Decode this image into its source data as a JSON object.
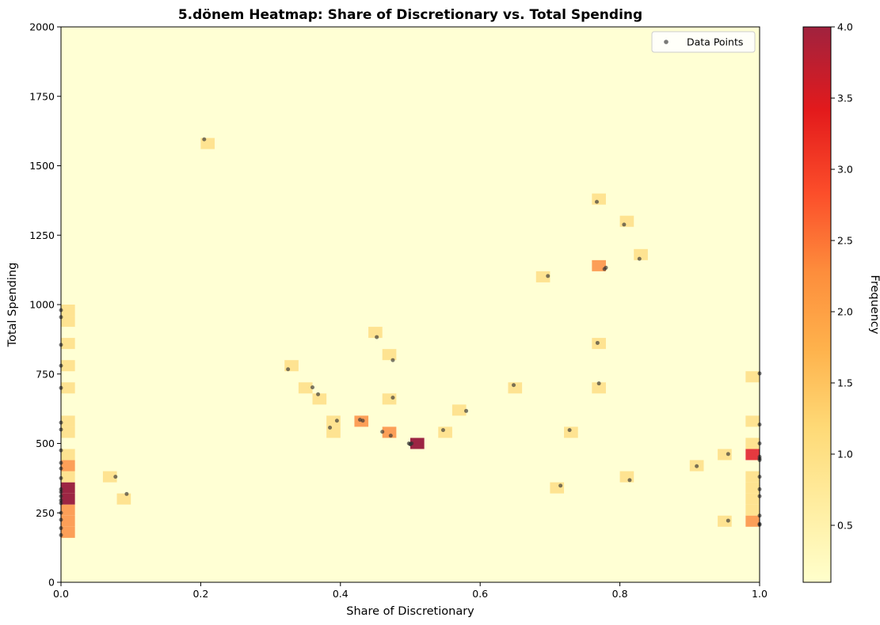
{
  "chart_data": {
    "type": "heatmap",
    "title": "5.dönem Heatmap: Share of Discretionary vs. Total Spending",
    "xlabel": "Share of Discretionary",
    "ylabel": "Total Spending",
    "xlim": [
      0,
      1
    ],
    "ylim": [
      0,
      2000
    ],
    "x_ticks": [
      "0.0",
      "0.2",
      "0.4",
      "0.6",
      "0.8",
      "1.0"
    ],
    "y_ticks": [
      "0",
      "250",
      "500",
      "750",
      "1000",
      "1250",
      "1500",
      "1750",
      "2000"
    ],
    "bin_size": {
      "x": 0.02,
      "y": 40
    },
    "colorbar": {
      "label": "Frequency",
      "range": [
        0.1,
        4.0
      ],
      "ticks": [
        "0.5",
        "1.0",
        "1.5",
        "2.0",
        "2.5",
        "3.0",
        "3.5",
        "4.0"
      ],
      "colors": [
        "#ffffcc",
        "#fed976",
        "#feb24c",
        "#fd8d3c",
        "#fc4e2a",
        "#e31a1c",
        "#bd0026",
        "#800026"
      ]
    },
    "background_color": "#ffffd4",
    "legend": {
      "label": "Data Points",
      "position": "top-right"
    },
    "bins": [
      {
        "x": 0.0,
        "y": 160,
        "count": 2
      },
      {
        "x": 0.0,
        "y": 200,
        "count": 2
      },
      {
        "x": 0.0,
        "y": 240,
        "count": 2
      },
      {
        "x": 0.0,
        "y": 280,
        "count": 4
      },
      {
        "x": 0.0,
        "y": 320,
        "count": 4
      },
      {
        "x": 0.0,
        "y": 360,
        "count": 1
      },
      {
        "x": 0.0,
        "y": 400,
        "count": 2
      },
      {
        "x": 0.0,
        "y": 440,
        "count": 1
      },
      {
        "x": 0.0,
        "y": 520,
        "count": 1
      },
      {
        "x": 0.0,
        "y": 560,
        "count": 1
      },
      {
        "x": 0.0,
        "y": 680,
        "count": 1
      },
      {
        "x": 0.0,
        "y": 760,
        "count": 1
      },
      {
        "x": 0.0,
        "y": 840,
        "count": 1
      },
      {
        "x": 0.0,
        "y": 920,
        "count": 1
      },
      {
        "x": 0.0,
        "y": 960,
        "count": 1
      },
      {
        "x": 0.06,
        "y": 360,
        "count": 1
      },
      {
        "x": 0.08,
        "y": 280,
        "count": 1
      },
      {
        "x": 0.2,
        "y": 1560,
        "count": 1
      },
      {
        "x": 0.32,
        "y": 760,
        "count": 1
      },
      {
        "x": 0.34,
        "y": 680,
        "count": 1
      },
      {
        "x": 0.36,
        "y": 640,
        "count": 1
      },
      {
        "x": 0.38,
        "y": 520,
        "count": 1
      },
      {
        "x": 0.38,
        "y": 560,
        "count": 1
      },
      {
        "x": 0.42,
        "y": 560,
        "count": 2
      },
      {
        "x": 0.44,
        "y": 880,
        "count": 1
      },
      {
        "x": 0.46,
        "y": 800,
        "count": 1
      },
      {
        "x": 0.46,
        "y": 640,
        "count": 1
      },
      {
        "x": 0.46,
        "y": 520,
        "count": 2
      },
      {
        "x": 0.5,
        "y": 480,
        "count": 4
      },
      {
        "x": 0.54,
        "y": 520,
        "count": 1
      },
      {
        "x": 0.56,
        "y": 600,
        "count": 1
      },
      {
        "x": 0.64,
        "y": 680,
        "count": 1
      },
      {
        "x": 0.68,
        "y": 1080,
        "count": 1
      },
      {
        "x": 0.7,
        "y": 320,
        "count": 1
      },
      {
        "x": 0.72,
        "y": 520,
        "count": 1
      },
      {
        "x": 0.76,
        "y": 1360,
        "count": 1
      },
      {
        "x": 0.76,
        "y": 1120,
        "count": 2
      },
      {
        "x": 0.76,
        "y": 840,
        "count": 1
      },
      {
        "x": 0.76,
        "y": 680,
        "count": 1
      },
      {
        "x": 0.8,
        "y": 1280,
        "count": 1
      },
      {
        "x": 0.8,
        "y": 360,
        "count": 1
      },
      {
        "x": 0.82,
        "y": 1160,
        "count": 1
      },
      {
        "x": 0.9,
        "y": 400,
        "count": 1
      },
      {
        "x": 0.94,
        "y": 440,
        "count": 1
      },
      {
        "x": 0.94,
        "y": 200,
        "count": 1
      },
      {
        "x": 0.98,
        "y": 720,
        "count": 1
      },
      {
        "x": 0.98,
        "y": 560,
        "count": 1
      },
      {
        "x": 0.98,
        "y": 480,
        "count": 1
      },
      {
        "x": 0.98,
        "y": 440,
        "count": 3
      },
      {
        "x": 0.98,
        "y": 360,
        "count": 1
      },
      {
        "x": 0.98,
        "y": 320,
        "count": 1
      },
      {
        "x": 0.98,
        "y": 280,
        "count": 1
      },
      {
        "x": 0.98,
        "y": 240,
        "count": 1
      },
      {
        "x": 0.98,
        "y": 200,
        "count": 2
      }
    ],
    "points": [
      {
        "x": 0.0,
        "y": 980
      },
      {
        "x": 0.0,
        "y": 955
      },
      {
        "x": 0.0,
        "y": 855
      },
      {
        "x": 0.0,
        "y": 780
      },
      {
        "x": 0.0,
        "y": 700
      },
      {
        "x": 0.0,
        "y": 575
      },
      {
        "x": 0.0,
        "y": 550
      },
      {
        "x": 0.0,
        "y": 475
      },
      {
        "x": 0.0,
        "y": 430
      },
      {
        "x": 0.0,
        "y": 410
      },
      {
        "x": 0.0,
        "y": 375
      },
      {
        "x": 0.0,
        "y": 335
      },
      {
        "x": 0.0,
        "y": 325
      },
      {
        "x": 0.0,
        "y": 310
      },
      {
        "x": 0.0,
        "y": 295
      },
      {
        "x": 0.0,
        "y": 285
      },
      {
        "x": 0.0,
        "y": 250
      },
      {
        "x": 0.0,
        "y": 225
      },
      {
        "x": 0.0,
        "y": 195
      },
      {
        "x": 0.0,
        "y": 170
      },
      {
        "x": 0.078,
        "y": 380
      },
      {
        "x": 0.094,
        "y": 318
      },
      {
        "x": 0.205,
        "y": 1595
      },
      {
        "x": 0.325,
        "y": 767
      },
      {
        "x": 0.36,
        "y": 702
      },
      {
        "x": 0.368,
        "y": 677
      },
      {
        "x": 0.385,
        "y": 557
      },
      {
        "x": 0.395,
        "y": 582
      },
      {
        "x": 0.428,
        "y": 585
      },
      {
        "x": 0.432,
        "y": 582
      },
      {
        "x": 0.452,
        "y": 883
      },
      {
        "x": 0.475,
        "y": 800
      },
      {
        "x": 0.475,
        "y": 665
      },
      {
        "x": 0.46,
        "y": 542
      },
      {
        "x": 0.472,
        "y": 528
      },
      {
        "x": 0.498,
        "y": 500
      },
      {
        "x": 0.5,
        "y": 498
      },
      {
        "x": 0.502,
        "y": 500
      },
      {
        "x": 0.5,
        "y": 497
      },
      {
        "x": 0.547,
        "y": 548
      },
      {
        "x": 0.58,
        "y": 617
      },
      {
        "x": 0.648,
        "y": 710
      },
      {
        "x": 0.697,
        "y": 1103
      },
      {
        "x": 0.715,
        "y": 348
      },
      {
        "x": 0.728,
        "y": 548
      },
      {
        "x": 0.767,
        "y": 1370
      },
      {
        "x": 0.778,
        "y": 1128
      },
      {
        "x": 0.78,
        "y": 1133
      },
      {
        "x": 0.768,
        "y": 862
      },
      {
        "x": 0.77,
        "y": 716
      },
      {
        "x": 0.806,
        "y": 1288
      },
      {
        "x": 0.814,
        "y": 368
      },
      {
        "x": 0.828,
        "y": 1165
      },
      {
        "x": 0.91,
        "y": 418
      },
      {
        "x": 0.955,
        "y": 462
      },
      {
        "x": 0.955,
        "y": 222
      },
      {
        "x": 1.0,
        "y": 752
      },
      {
        "x": 1.0,
        "y": 568
      },
      {
        "x": 1.0,
        "y": 500
      },
      {
        "x": 1.0,
        "y": 452
      },
      {
        "x": 1.0,
        "y": 445
      },
      {
        "x": 1.0,
        "y": 440
      },
      {
        "x": 1.0,
        "y": 380
      },
      {
        "x": 1.0,
        "y": 335
      },
      {
        "x": 1.0,
        "y": 310
      },
      {
        "x": 1.0,
        "y": 240
      },
      {
        "x": 1.0,
        "y": 210
      },
      {
        "x": 1.0,
        "y": 207
      }
    ]
  }
}
